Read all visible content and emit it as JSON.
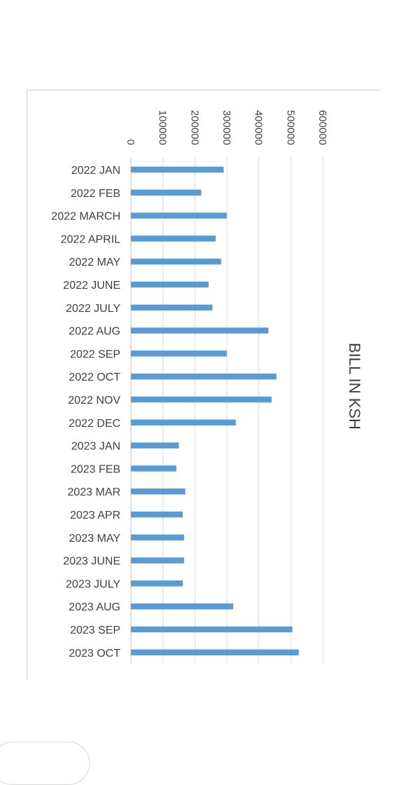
{
  "chart_data": {
    "type": "bar",
    "orientation": "horizontal",
    "title": "BILL IN KSH",
    "title_position": "right, rotated",
    "xlim": [
      0,
      600000
    ],
    "x_ticks": [
      0,
      100000,
      200000,
      300000,
      400000,
      500000,
      600000
    ],
    "grid": true,
    "legend": "none",
    "bar_color": "#5b9bd5",
    "categories": [
      "2022 JAN",
      "2022 FEB",
      "2022 MARCH",
      "2022 APRIL",
      "2022 MAY",
      "2022 JUNE",
      "2022 JULY",
      "2022 AUG",
      "2022 SEP",
      "2022 OCT",
      "2022 NOV",
      "2022 DEC",
      "2023 JAN",
      "2023 FEB",
      "2023 MAR",
      "2023 APR",
      "2023 MAY",
      "2023 JUNE",
      "2023 JULY",
      "2023 AUG",
      "2023 SEP",
      "2023 OCT"
    ],
    "values": [
      290000,
      220000,
      300000,
      265000,
      282000,
      243000,
      255000,
      430000,
      300000,
      455000,
      440000,
      328000,
      150000,
      142000,
      170000,
      162000,
      166000,
      166000,
      162000,
      320000,
      505000,
      525000
    ]
  }
}
